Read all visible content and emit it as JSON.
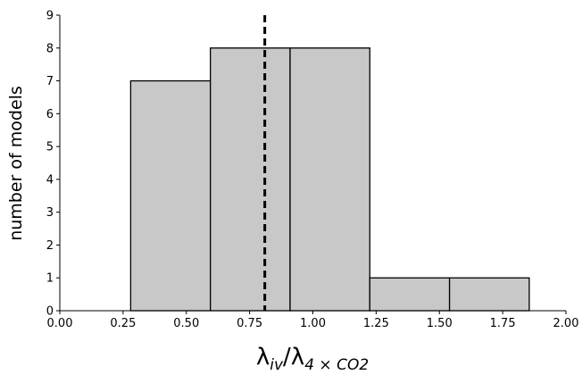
{
  "chart_data": {
    "type": "histogram",
    "ylabel": "number of models",
    "xlabel": {
      "base1": "λ",
      "sub1": "iv",
      "base2": "/λ",
      "sub2": "4 × CO2"
    },
    "bins": [
      0.28,
      0.595,
      0.91,
      1.225,
      1.54,
      1.855
    ],
    "values": [
      7,
      8,
      8,
      1,
      1
    ],
    "color": "#c8c8c8",
    "edgecolor": "#000000",
    "vline": 0.81,
    "vline_color": "#000000",
    "xlim": [
      0,
      2
    ],
    "ylim": [
      0,
      9
    ],
    "xticks": [
      {
        "value": 0,
        "label": "0.00"
      },
      {
        "value": 0.25,
        "label": "0.25"
      },
      {
        "value": 0.5,
        "label": "0.50"
      },
      {
        "value": 0.75,
        "label": "0.75"
      },
      {
        "value": 1,
        "label": "1.00"
      },
      {
        "value": 1.25,
        "label": "1.25"
      },
      {
        "value": 1.5,
        "label": "1.50"
      },
      {
        "value": 1.75,
        "label": "1.75"
      },
      {
        "value": 2,
        "label": "2.00"
      }
    ],
    "yticks": [
      0,
      1,
      2,
      3,
      4,
      5,
      6,
      7,
      8,
      9
    ]
  }
}
